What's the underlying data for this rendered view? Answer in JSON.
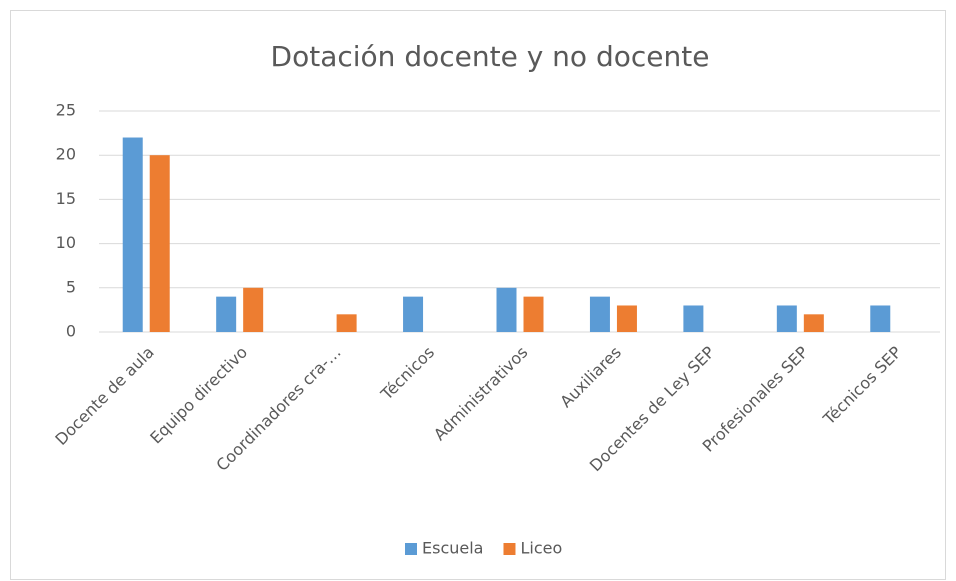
{
  "chart_data": {
    "type": "bar",
    "title": "Dotación docente y no docente",
    "categories": [
      "Docente de aula",
      "Equipo directivo",
      "Coordinadores cra-…",
      "Técnicos",
      "Administrativos",
      "Auxiliares",
      "Docentes de Ley SEP",
      "Profesionales SEP",
      "Técnicos SEP"
    ],
    "series": [
      {
        "name": "Escuela",
        "color": "#5b9bd5",
        "values": [
          22,
          4,
          0,
          4,
          5,
          4,
          3,
          3,
          3
        ]
      },
      {
        "name": "Liceo",
        "color": "#ed7d31",
        "values": [
          20,
          5,
          2,
          0,
          4,
          3,
          0,
          2,
          0
        ]
      }
    ],
    "ylim": [
      0,
      25
    ],
    "yticks": [
      0,
      5,
      10,
      15,
      20,
      25
    ],
    "grid": true,
    "legend": "bottom"
  }
}
